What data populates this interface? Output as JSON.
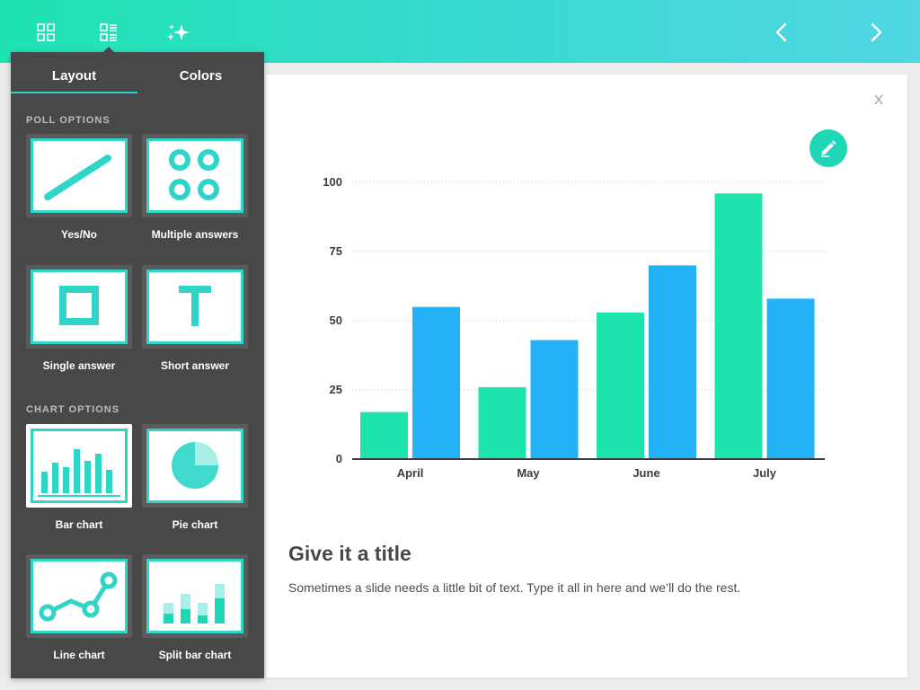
{
  "toolbar": {
    "icons": [
      "grid-icon",
      "layout-list-icon",
      "sparkles-icon"
    ],
    "prev_icon": "chevron-left-icon",
    "next_icon": "chevron-right-icon"
  },
  "panel": {
    "tabs": [
      {
        "label": "Layout",
        "active": true
      },
      {
        "label": "Colors",
        "active": false
      }
    ],
    "poll_section": "POLL OPTIONS",
    "chart_section": "CHART OPTIONS",
    "poll_options": [
      {
        "label": "Yes/No",
        "icon": "diagonal-line-icon"
      },
      {
        "label": "Multiple answers",
        "icon": "four-circles-icon"
      },
      {
        "label": "Single answer",
        "icon": "square-outline-icon"
      },
      {
        "label": "Short answer",
        "icon": "letter-t-icon"
      }
    ],
    "chart_options": [
      {
        "label": "Bar chart",
        "icon": "bar-chart-icon",
        "selected": true
      },
      {
        "label": "Pie chart",
        "icon": "pie-chart-icon",
        "selected": false
      },
      {
        "label": "Line chart",
        "icon": "line-chart-icon",
        "selected": false
      },
      {
        "label": "Split bar chart",
        "icon": "split-bar-chart-icon",
        "selected": false
      }
    ]
  },
  "slide": {
    "close_label": "X",
    "edit_icon": "pencil-icon",
    "title": "Give it a title",
    "body": "Sometimes a slide needs a little bit of text. Type it all in here and we’ll do the rest."
  },
  "chart_data": {
    "type": "bar",
    "categories": [
      "April",
      "May",
      "June",
      "July"
    ],
    "series": [
      {
        "values": [
          17,
          26,
          53,
          96
        ],
        "color": "#1de4ad"
      },
      {
        "values": [
          55,
          43,
          70,
          58
        ],
        "color": "#23b2f6"
      }
    ],
    "yticks": [
      0,
      25,
      50,
      75,
      100
    ],
    "ylim": [
      0,
      100
    ],
    "grid": "dotted horizontal",
    "legend": "none"
  },
  "colors": {
    "accent": "#2fd5c6",
    "panel_bg": "#484848"
  }
}
